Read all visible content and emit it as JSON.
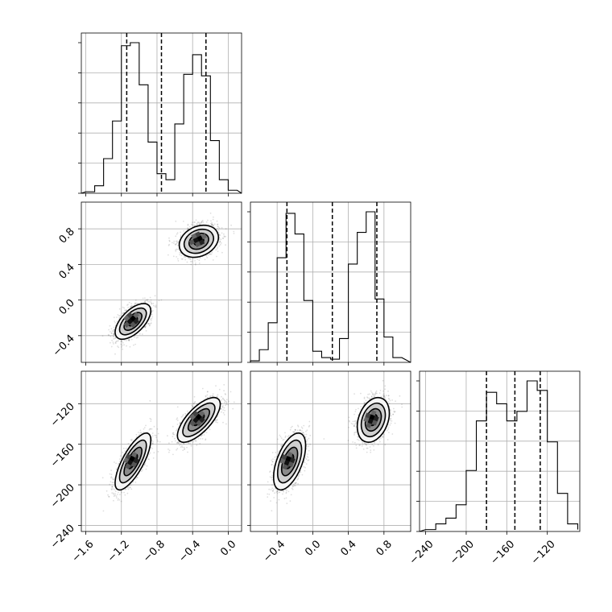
{
  "chart_data": [
    {
      "type": "histogram",
      "panel": "hist-x",
      "x_ticks": [
        "−1.6",
        "−1.2",
        "−0.8",
        "−0.4",
        "0.0"
      ],
      "x_tick_values": [
        -1.6,
        -1.2,
        -0.8,
        -0.4,
        0.0
      ],
      "xlim": [
        -1.65,
        0.15
      ],
      "bin_edges": [
        -1.6,
        -1.5,
        -1.4,
        -1.3,
        -1.2,
        -1.1,
        -1.0,
        -0.9,
        -0.8,
        -0.7,
        -0.6,
        -0.5,
        -0.4,
        -0.3,
        -0.2,
        -0.1,
        0.0,
        0.1
      ],
      "counts": [
        0.01,
        0.05,
        0.23,
        0.48,
        0.98,
        1.0,
        0.72,
        0.34,
        0.13,
        0.09,
        0.46,
        0.79,
        0.92,
        0.78,
        0.35,
        0.09,
        0.02
      ],
      "quantiles": [
        -1.14,
        -0.75,
        -0.25
      ],
      "grid": true
    },
    {
      "type": "histogram",
      "panel": "hist-y",
      "x_ticks": [
        "−0.4",
        "0.0",
        "0.4",
        "0.8"
      ],
      "x_tick_values": [
        -0.4,
        0.0,
        0.4,
        0.8
      ],
      "xlim": [
        -0.7,
        1.1
      ],
      "bin_edges": [
        -0.7,
        -0.6,
        -0.5,
        -0.4,
        -0.3,
        -0.2,
        -0.1,
        0.0,
        0.1,
        0.2,
        0.3,
        0.4,
        0.5,
        0.6,
        0.7,
        0.8,
        0.9,
        1.0
      ],
      "counts": [
        0.01,
        0.08,
        0.25,
        0.66,
        0.94,
        0.81,
        0.39,
        0.07,
        0.03,
        0.02,
        0.15,
        0.62,
        0.82,
        0.95,
        0.4,
        0.16,
        0.03
      ],
      "quantiles": [
        -0.29,
        0.22,
        0.72
      ],
      "grid": true
    },
    {
      "type": "histogram",
      "panel": "hist-z",
      "x_ticks": [
        "−240",
        "−200",
        "−160",
        "−120"
      ],
      "x_tick_values": [
        -240,
        -200,
        -160,
        -120
      ],
      "xlim": [
        -246,
        -88
      ],
      "bin_edges": [
        -240,
        -230,
        -220,
        -210,
        -200,
        -190,
        -180,
        -170,
        -160,
        -150,
        -140,
        -130,
        -120,
        -110,
        -100,
        -90
      ],
      "counts": [
        0.01,
        0.04,
        0.07,
        0.14,
        0.32,
        0.58,
        0.73,
        0.67,
        0.58,
        0.63,
        0.79,
        0.74,
        0.47,
        0.2,
        0.04,
        0.01
      ],
      "quantiles": [
        -180,
        -152,
        -127
      ],
      "grid": true
    },
    {
      "type": "scatter",
      "panel": "x-vs-y",
      "y_ticks": [
        "−0.4",
        "0.0",
        "0.4",
        "0.8"
      ],
      "y_tick_values": [
        -0.4,
        0.0,
        0.4,
        0.8
      ],
      "xlim": [
        -1.65,
        0.15
      ],
      "ylim": [
        -0.7,
        1.1
      ],
      "clusters": [
        {
          "center": [
            -1.07,
            -0.24
          ],
          "spread": [
            0.1,
            0.1
          ],
          "corr": 0.6,
          "n": 1300
        },
        {
          "center": [
            -0.33,
            0.66
          ],
          "spread": [
            0.11,
            0.09
          ],
          "corr": 0.25,
          "n": 1300
        }
      ],
      "contour_levels": [
        0.5,
        1.0,
        1.5,
        2.0
      ],
      "grid": true
    },
    {
      "type": "scatter",
      "panel": "x-vs-z",
      "y_ticks": [
        "−240",
        "−200",
        "−160",
        "−120"
      ],
      "y_tick_values": [
        -240,
        -200,
        -160,
        -120
      ],
      "xlim": [
        -1.65,
        0.15
      ],
      "ylim": [
        -246,
        -88
      ],
      "clusters": [
        {
          "center": [
            -1.07,
            -177
          ],
          "spread": [
            0.1,
            14
          ],
          "corr": 0.75,
          "n": 1300
        },
        {
          "center": [
            -0.33,
            -136
          ],
          "spread": [
            0.12,
            11
          ],
          "corr": 0.7,
          "n": 1300
        }
      ],
      "contour_levels": [
        0.5,
        1.0,
        1.5,
        2.0
      ],
      "grid": true
    },
    {
      "type": "scatter",
      "panel": "y-vs-z",
      "xlim": [
        -0.7,
        1.1
      ],
      "ylim": [
        -246,
        -88
      ],
      "clusters": [
        {
          "center": [
            -0.26,
            -177
          ],
          "spread": [
            0.09,
            14
          ],
          "corr": 0.55,
          "n": 1300
        },
        {
          "center": [
            0.68,
            -136
          ],
          "spread": [
            0.09,
            11
          ],
          "corr": 0.3,
          "n": 1300
        }
      ],
      "contour_levels": [
        0.5,
        1.0,
        1.5,
        2.0
      ],
      "grid": true
    }
  ]
}
